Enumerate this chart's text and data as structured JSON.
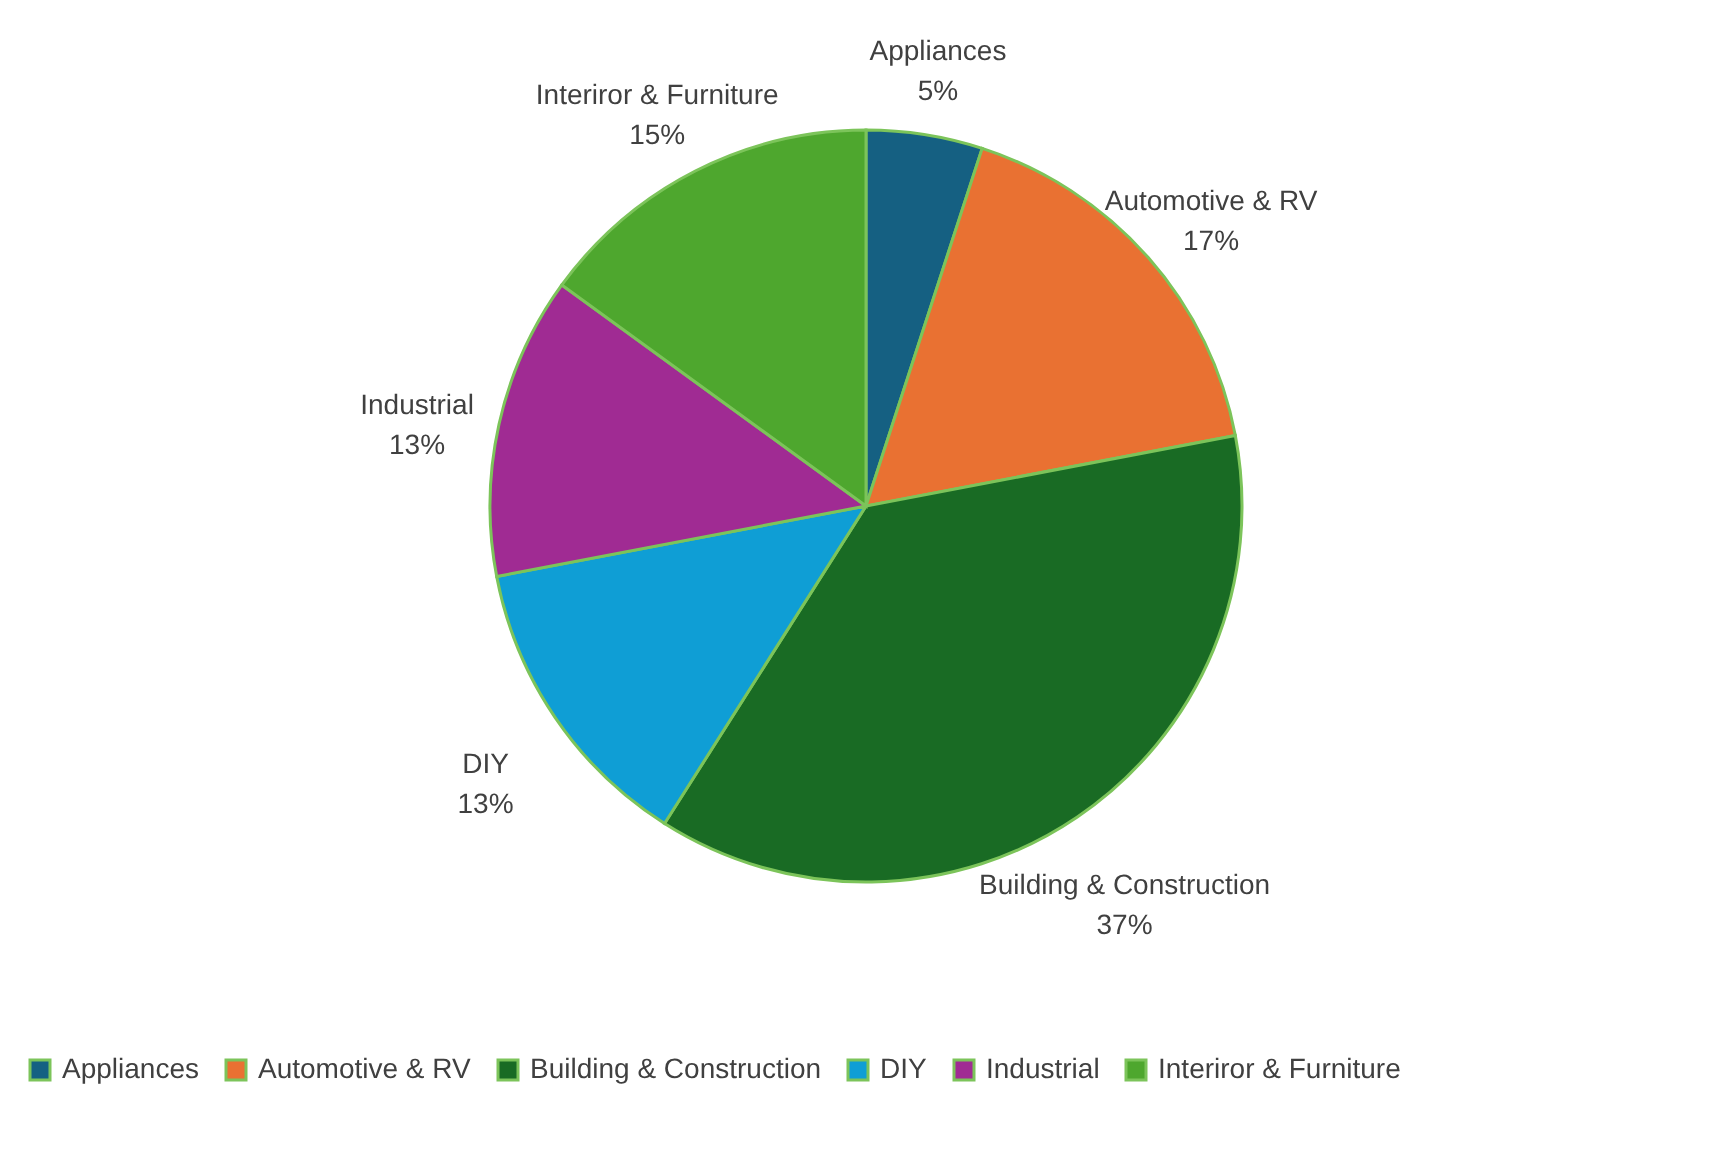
{
  "chart_data": {
    "type": "pie",
    "categories": [
      "Appliances",
      "Automotive & RV",
      "Building & Construction",
      "DIY",
      "Industrial",
      "Interiror & Furniture"
    ],
    "values": [
      5,
      17,
      37,
      13,
      13,
      15
    ],
    "value_labels": [
      "5%",
      "17%",
      "37%",
      "13%",
      "13%",
      "15%"
    ],
    "colors": [
      "#156082",
      "#e97132",
      "#196b24",
      "#0f9ed5",
      "#a02b93",
      "#4ea72e"
    ],
    "legend": "bottom"
  }
}
